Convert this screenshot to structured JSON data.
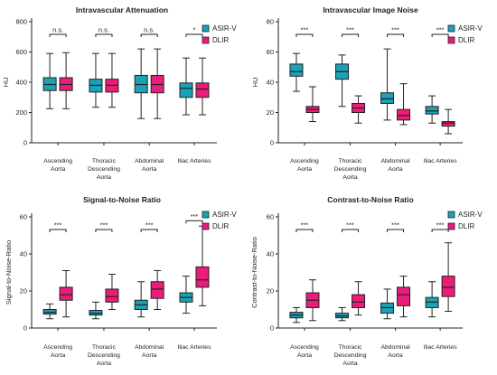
{
  "colors": {
    "asir": "#1aa2b6",
    "dlir": "#ec1c7a",
    "axis": "#222222"
  },
  "chart_data": [
    {
      "type": "boxplot",
      "title": "Intravascular Attenuation",
      "ylabel": "HU",
      "ylim": [
        0,
        800
      ],
      "yticks": [
        0,
        200,
        400,
        600,
        800
      ],
      "categories": [
        [
          "Ascending",
          "Aorta"
        ],
        [
          "Thoracic",
          "Descending",
          "Aorta"
        ],
        [
          "Abdominal",
          "Aorta"
        ],
        [
          "Iliac Arteries"
        ]
      ],
      "significance": [
        "n.s.",
        "n.s.",
        "n.s.",
        "*"
      ],
      "legend": [
        "ASIR-V",
        "DLIR"
      ],
      "series": [
        {
          "name": "ASIR-V",
          "boxes": [
            {
              "min": 225,
              "q1": 345,
              "median": 385,
              "q3": 430,
              "max": 590
            },
            {
              "min": 235,
              "q1": 335,
              "median": 380,
              "q3": 420,
              "max": 590
            },
            {
              "min": 160,
              "q1": 330,
              "median": 385,
              "q3": 445,
              "max": 620
            },
            {
              "min": 185,
              "q1": 300,
              "median": 360,
              "q3": 395,
              "max": 560
            }
          ]
        },
        {
          "name": "DLIR",
          "boxes": [
            {
              "min": 225,
              "q1": 345,
              "median": 385,
              "q3": 430,
              "max": 595
            },
            {
              "min": 235,
              "q1": 335,
              "median": 380,
              "q3": 420,
              "max": 590
            },
            {
              "min": 160,
              "q1": 330,
              "median": 385,
              "q3": 445,
              "max": 620
            },
            {
              "min": 185,
              "q1": 300,
              "median": 355,
              "q3": 395,
              "max": 560
            }
          ]
        }
      ]
    },
    {
      "type": "boxplot",
      "title": "Intravascular Image  Noise",
      "ylabel": "HU",
      "ylim": [
        0,
        80
      ],
      "yticks": [
        0,
        20,
        40,
        60,
        80
      ],
      "categories": [
        [
          "Ascending",
          "Aorta"
        ],
        [
          "Thoracic",
          "Descending",
          "Aorta"
        ],
        [
          "Abdominal",
          "Aorta"
        ],
        [
          "Iliac Arteries"
        ]
      ],
      "significance": [
        "***",
        "***",
        "***",
        "***"
      ],
      "legend": [
        "ASIR-V",
        "DLIR"
      ],
      "series": [
        {
          "name": "ASIR-V",
          "boxes": [
            {
              "min": 34,
              "q1": 44,
              "median": 47,
              "q3": 52,
              "max": 59
            },
            {
              "min": 24,
              "q1": 42,
              "median": 47,
              "q3": 52,
              "max": 58
            },
            {
              "min": 15,
              "q1": 26,
              "median": 29,
              "q3": 33,
              "max": 62
            },
            {
              "min": 13,
              "q1": 19,
              "median": 21,
              "q3": 24,
              "max": 31
            }
          ]
        },
        {
          "name": "DLIR",
          "boxes": [
            {
              "min": 14,
              "q1": 20,
              "median": 22,
              "q3": 24,
              "max": 37
            },
            {
              "min": 13,
              "q1": 20,
              "median": 23,
              "q3": 26,
              "max": 31
            },
            {
              "min": 12,
              "q1": 15,
              "median": 18,
              "q3": 22,
              "max": 39
            },
            {
              "min": 6,
              "q1": 11,
              "median": 13,
              "q3": 14,
              "max": 22
            }
          ]
        }
      ]
    },
    {
      "type": "boxplot",
      "title": "Signal-to-Noise Ratio",
      "ylabel": "Signal-to-Noise-Ratio",
      "ylim": [
        0,
        60
      ],
      "yticks": [
        0,
        20,
        40,
        60
      ],
      "categories": [
        [
          "Ascending",
          "Aorta"
        ],
        [
          "Thoracic",
          "Descending",
          "Aorta"
        ],
        [
          "Abdominal",
          "Aorta"
        ],
        [
          "Iliac Arteries"
        ]
      ],
      "significance": [
        "***",
        "***",
        "***",
        "***"
      ],
      "legend": [
        "ASIR-V",
        "DLIR"
      ],
      "series": [
        {
          "name": "ASIR-V",
          "boxes": [
            {
              "min": 5,
              "q1": 7.5,
              "median": 8.5,
              "q3": 10,
              "max": 13
            },
            {
              "min": 5,
              "q1": 7,
              "median": 8,
              "q3": 9.5,
              "max": 14
            },
            {
              "min": 6,
              "q1": 10,
              "median": 12.5,
              "q3": 15,
              "max": 25
            },
            {
              "min": 8,
              "q1": 14,
              "median": 16.5,
              "q3": 19,
              "max": 28
            }
          ]
        },
        {
          "name": "DLIR",
          "boxes": [
            {
              "min": 6,
              "q1": 15,
              "median": 18,
              "q3": 22,
              "max": 31
            },
            {
              "min": 10,
              "q1": 14,
              "median": 17,
              "q3": 21,
              "max": 29
            },
            {
              "min": 10,
              "q1": 16,
              "median": 21,
              "q3": 25,
              "max": 31
            },
            {
              "min": 12,
              "q1": 22,
              "median": 26,
              "q3": 33,
              "max": 55
            }
          ]
        }
      ]
    },
    {
      "type": "boxplot",
      "title": "Contrast-to-Noise Ratio",
      "ylabel": "Contrast-to-Noise-Ratio",
      "ylim": [
        0,
        60
      ],
      "yticks": [
        0,
        20,
        40,
        60
      ],
      "categories": [
        [
          "Ascending",
          "Aorta"
        ],
        [
          "Thoracic",
          "Descending",
          "Aorta"
        ],
        [
          "Abdominal",
          "Aorta"
        ],
        [
          "Iliac Arteries"
        ]
      ],
      "significance": [
        "***",
        "***",
        "***",
        "***"
      ],
      "legend": [
        "ASIR-V",
        "DLIR"
      ],
      "series": [
        {
          "name": "ASIR-V",
          "boxes": [
            {
              "min": 3,
              "q1": 5.5,
              "median": 7,
              "q3": 8.5,
              "max": 11
            },
            {
              "min": 4,
              "q1": 5.5,
              "median": 6.5,
              "q3": 8,
              "max": 11
            },
            {
              "min": 5,
              "q1": 8,
              "median": 11,
              "q3": 13.5,
              "max": 21
            },
            {
              "min": 6,
              "q1": 11,
              "median": 14,
              "q3": 16.5,
              "max": 25
            }
          ]
        },
        {
          "name": "DLIR",
          "boxes": [
            {
              "min": 4,
              "q1": 11,
              "median": 15,
              "q3": 19,
              "max": 26
            },
            {
              "min": 7,
              "q1": 11,
              "median": 14,
              "q3": 18,
              "max": 25
            },
            {
              "min": 6,
              "q1": 12,
              "median": 18,
              "q3": 22,
              "max": 28
            },
            {
              "min": 9,
              "q1": 17,
              "median": 22,
              "q3": 28,
              "max": 46
            }
          ]
        }
      ]
    }
  ]
}
